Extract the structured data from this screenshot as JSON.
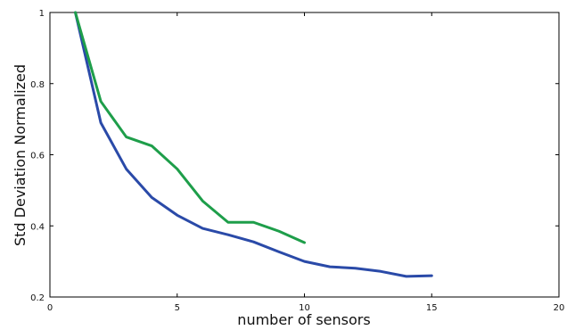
{
  "chart_data": {
    "type": "line",
    "xlabel": "number of sensors",
    "ylabel": "Std Deviation Normalized",
    "xlim": [
      0,
      20
    ],
    "ylim": [
      0.2,
      1.0
    ],
    "xticks": [
      0,
      5,
      10,
      15,
      20
    ],
    "yticks": [
      0.2,
      0.4,
      0.6,
      0.8,
      1.0
    ],
    "xtick_labels": [
      "0",
      "5",
      "10",
      "15",
      "20"
    ],
    "ytick_labels": [
      "0.2",
      "0.4",
      "0.6",
      "0.8",
      "1"
    ],
    "grid": false,
    "legend": "none",
    "series": [
      {
        "color": "#2a4aa8",
        "x": [
          1,
          2,
          3,
          4,
          5,
          6,
          7,
          8,
          9,
          10,
          11,
          12,
          13,
          14,
          15
        ],
        "y": [
          1.0,
          0.69,
          0.56,
          0.48,
          0.43,
          0.393,
          0.375,
          0.355,
          0.327,
          0.3,
          0.285,
          0.281,
          0.272,
          0.258,
          0.26
        ]
      },
      {
        "color": "#1e9e4a",
        "x": [
          1,
          2,
          3,
          4,
          5,
          6,
          7,
          8,
          9,
          10
        ],
        "y": [
          1.0,
          0.75,
          0.65,
          0.625,
          0.56,
          0.47,
          0.41,
          0.41,
          0.385,
          0.353
        ]
      }
    ]
  }
}
